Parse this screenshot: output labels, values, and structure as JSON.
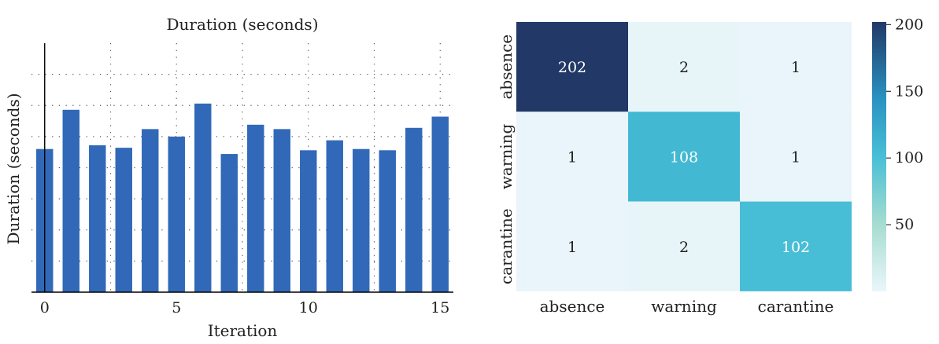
{
  "chart_data": [
    {
      "type": "bar",
      "title": "Duration (seconds)",
      "xlabel": "Iteration",
      "ylabel": "Duration (seconds)",
      "x": [
        0,
        1,
        2,
        3,
        4,
        5,
        6,
        7,
        8,
        9,
        10,
        11,
        12,
        13,
        14,
        15
      ],
      "values": [
        2.3,
        2.93,
        2.36,
        2.32,
        2.62,
        2.5,
        3.03,
        2.22,
        2.69,
        2.62,
        2.28,
        2.44,
        2.3,
        2.28,
        2.64,
        2.82
      ],
      "xticks": [
        "0",
        "5",
        "10",
        "15"
      ],
      "xlim": [
        -0.5,
        15.5
      ],
      "ylim": [
        0,
        4
      ],
      "grid": true,
      "grid_style": "dotted",
      "bar_color": "#3169b8"
    },
    {
      "type": "heatmap",
      "rows": [
        "absence",
        "warning",
        "carantine"
      ],
      "cols": [
        "absence",
        "warning",
        "carantine"
      ],
      "values": [
        [
          202,
          2,
          1
        ],
        [
          1,
          108,
          1
        ],
        [
          1,
          2,
          102
        ]
      ],
      "colorbar_ticks": [
        "50",
        "100",
        "150",
        "200"
      ],
      "vmin": 0,
      "vmax": 202,
      "colormap": "YlGnBu"
    }
  ]
}
